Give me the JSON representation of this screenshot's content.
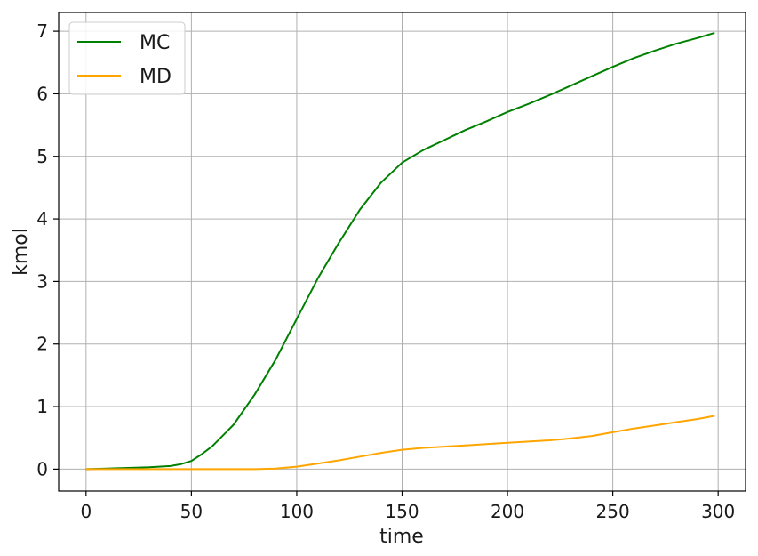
{
  "chart_data": {
    "type": "line",
    "title": "",
    "xlabel": "time",
    "ylabel": "kmol",
    "xlim": [
      -13,
      313
    ],
    "ylim": [
      -0.35,
      7.3
    ],
    "xticks": [
      0,
      50,
      100,
      150,
      200,
      250,
      300
    ],
    "yticks": [
      0,
      1,
      2,
      3,
      4,
      5,
      6,
      7
    ],
    "xtick_labels": [
      "0",
      "50",
      "100",
      "150",
      "200",
      "250",
      "300"
    ],
    "ytick_labels": [
      "0",
      "1",
      "2",
      "3",
      "4",
      "5",
      "6",
      "7"
    ],
    "grid": true,
    "legend_position": "top-left",
    "series": [
      {
        "name": "MC",
        "color": "#008000",
        "x": [
          0,
          10,
          20,
          30,
          40,
          45,
          50,
          55,
          60,
          70,
          80,
          90,
          100,
          110,
          120,
          130,
          140,
          150,
          160,
          170,
          180,
          190,
          200,
          210,
          220,
          230,
          240,
          250,
          260,
          270,
          280,
          290,
          298
        ],
        "y": [
          0.0,
          0.01,
          0.02,
          0.03,
          0.05,
          0.08,
          0.13,
          0.24,
          0.37,
          0.71,
          1.19,
          1.75,
          2.4,
          3.05,
          3.62,
          4.15,
          4.58,
          4.9,
          5.1,
          5.26,
          5.42,
          5.56,
          5.71,
          5.84,
          5.98,
          6.13,
          6.28,
          6.43,
          6.57,
          6.69,
          6.8,
          6.89,
          6.97
        ]
      },
      {
        "name": "MD",
        "color": "#ffa500",
        "x": [
          0,
          20,
          40,
          60,
          80,
          90,
          100,
          110,
          120,
          130,
          140,
          150,
          160,
          170,
          180,
          190,
          200,
          210,
          220,
          230,
          240,
          250,
          260,
          270,
          280,
          290,
          298
        ],
        "y": [
          0.0,
          0.0,
          0.0,
          0.0,
          0.0,
          0.01,
          0.04,
          0.09,
          0.14,
          0.2,
          0.26,
          0.31,
          0.34,
          0.36,
          0.38,
          0.4,
          0.42,
          0.44,
          0.46,
          0.49,
          0.53,
          0.59,
          0.65,
          0.7,
          0.75,
          0.8,
          0.85
        ]
      }
    ]
  }
}
